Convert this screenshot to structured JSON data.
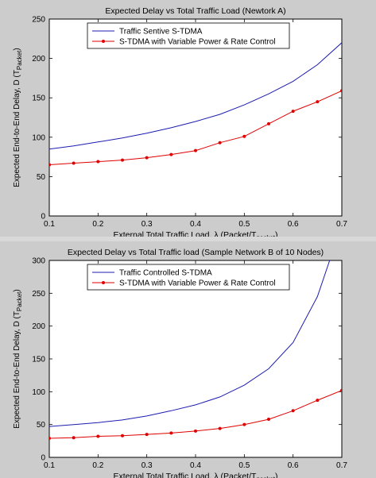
{
  "charts": [
    {
      "type": "line",
      "title": "Expected Delay vs Total Traffic Load (Newtork A)",
      "xlabel_main": "External Total Traffic Load, λ (Packet/T",
      "xlabel_sub": "packet",
      "xlabel_end": ")",
      "ylabel_main": "Expected End-to-End Delay, D (T",
      "ylabel_sub": "Packet",
      "ylabel_end": ")",
      "xlim": [
        0.1,
        0.7
      ],
      "ylim": [
        0,
        250
      ],
      "xticks": [
        "0.1",
        "0.2",
        "0.3",
        "0.4",
        "0.5",
        "0.6",
        "0.7"
      ],
      "yticks": [
        "0",
        "50",
        "100",
        "150",
        "200",
        "250"
      ],
      "legend_position": "top-center",
      "series": [
        {
          "name": "Traffic Sentive S-TDMA",
          "color": "#1c1cb0",
          "marker": "none",
          "x": [
            0.1,
            0.15,
            0.2,
            0.25,
            0.3,
            0.35,
            0.4,
            0.45,
            0.5,
            0.55,
            0.6,
            0.65,
            0.7
          ],
          "values": [
            85,
            89,
            94,
            99,
            105,
            112,
            120,
            129,
            141,
            155,
            171,
            192,
            220
          ]
        },
        {
          "name": "S-TDMA with Variable Power & Rate Control",
          "color": "#e00000",
          "marker": "dot",
          "x": [
            0.1,
            0.15,
            0.2,
            0.25,
            0.3,
            0.35,
            0.4,
            0.45,
            0.5,
            0.55,
            0.6,
            0.65,
            0.7
          ],
          "values": [
            65,
            67,
            69,
            71,
            74,
            78,
            83,
            93,
            101,
            117,
            133,
            145,
            159
          ]
        }
      ]
    },
    {
      "type": "line",
      "title": "Expected Delay vs Total Traffic load (Sample Network B of 10 Nodes)",
      "xlabel_main": "External Total Traffic Load, λ (Packet/T",
      "xlabel_sub": "packet",
      "xlabel_end": ")",
      "ylabel_main": "Expected End-to-End Delay, D (T",
      "ylabel_sub": "Packet",
      "ylabel_end": ")",
      "xlim": [
        0.1,
        0.7
      ],
      "ylim": [
        0,
        300
      ],
      "xticks": [
        "0.1",
        "0.2",
        "0.3",
        "0.4",
        "0.5",
        "0.6",
        "0.7"
      ],
      "yticks": [
        "0",
        "50",
        "100",
        "150",
        "200",
        "250",
        "300"
      ],
      "legend_position": "top-center",
      "series": [
        {
          "name": "Traffic Controlled S-TDMA",
          "color": "#1c1cb0",
          "marker": "none",
          "x": [
            0.1,
            0.15,
            0.2,
            0.25,
            0.3,
            0.35,
            0.4,
            0.45,
            0.5,
            0.55,
            0.6,
            0.65,
            0.675
          ],
          "values": [
            47,
            50,
            53,
            57,
            63,
            71,
            80,
            92,
            110,
            135,
            175,
            245,
            300
          ]
        },
        {
          "name": "S-TDMA with Variable Power & Rate Control",
          "color": "#e00000",
          "marker": "dot",
          "x": [
            0.1,
            0.15,
            0.2,
            0.25,
            0.3,
            0.35,
            0.4,
            0.45,
            0.5,
            0.55,
            0.6,
            0.65,
            0.7
          ],
          "values": [
            29,
            30,
            32,
            33,
            35,
            37,
            40,
            44,
            50,
            58,
            71,
            87,
            102
          ]
        }
      ]
    }
  ]
}
